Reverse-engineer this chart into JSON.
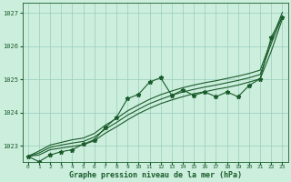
{
  "title": "Graphe pression niveau de la mer (hPa)",
  "bg_color": "#cceedd",
  "grid_color": "#99ccbb",
  "line_color": "#1a5c2a",
  "xlim": [
    -0.5,
    23.5
  ],
  "ylim": [
    1022.5,
    1027.3
  ],
  "yticks": [
    1023,
    1024,
    1025,
    1026,
    1027
  ],
  "xticks": [
    0,
    1,
    2,
    3,
    4,
    5,
    6,
    7,
    8,
    9,
    10,
    11,
    12,
    13,
    14,
    15,
    16,
    17,
    18,
    19,
    20,
    21,
    22,
    23
  ],
  "main_y": [
    1022.68,
    1022.52,
    1022.72,
    1022.82,
    1022.88,
    1023.05,
    1023.18,
    1023.55,
    1023.85,
    1024.42,
    1024.55,
    1024.92,
    1025.05,
    1024.52,
    1024.68,
    1024.52,
    1024.62,
    1024.48,
    1024.62,
    1024.48,
    1024.82,
    1025.02,
    1026.28,
    1026.88
  ],
  "trend1_y": [
    1022.68,
    1022.72,
    1022.88,
    1022.93,
    1022.98,
    1023.03,
    1023.15,
    1023.38,
    1023.57,
    1023.78,
    1023.97,
    1024.13,
    1024.27,
    1024.38,
    1024.48,
    1024.57,
    1024.63,
    1024.7,
    1024.76,
    1024.83,
    1024.92,
    1025.02,
    1025.85,
    1026.82
  ],
  "trend2_y": [
    1022.68,
    1022.78,
    1022.95,
    1023.02,
    1023.08,
    1023.13,
    1023.26,
    1023.5,
    1023.7,
    1023.92,
    1024.1,
    1024.27,
    1024.4,
    1024.52,
    1024.62,
    1024.7,
    1024.77,
    1024.83,
    1024.9,
    1024.97,
    1025.05,
    1025.15,
    1026.08,
    1026.9
  ],
  "trend3_y": [
    1022.68,
    1022.84,
    1023.02,
    1023.1,
    1023.18,
    1023.23,
    1023.37,
    1023.62,
    1023.82,
    1024.05,
    1024.23,
    1024.4,
    1024.54,
    1024.65,
    1024.75,
    1024.83,
    1024.9,
    1024.96,
    1025.03,
    1025.1,
    1025.18,
    1025.28,
    1026.18,
    1027.02
  ]
}
